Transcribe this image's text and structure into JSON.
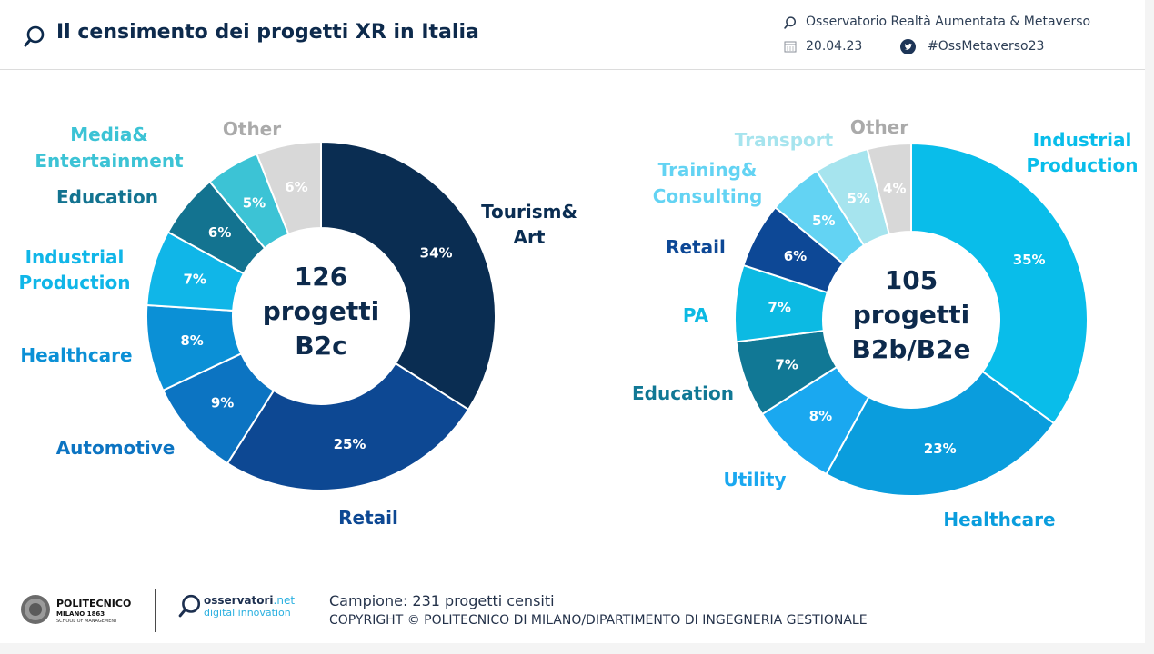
{
  "header": {
    "title": "Il censimento dei progetti XR in Italia",
    "observatory": "Osservatorio Realtà Aumentata & Metaverso",
    "date": "20.04.23",
    "hashtag": "#OssMetaverso23"
  },
  "footer": {
    "sample": "Campione: 231 progetti censiti",
    "copyright": "COPYRIGHT © POLITECNICO DI MILANO/DIPARTIMENTO DI INGEGNERIA GESTIONALE",
    "logo_polimi": {
      "name": "POLITECNICO",
      "sub": "MILANO 1863",
      "sub2": "SCHOOL OF MANAGEMENT"
    },
    "logo_osservatori": {
      "name": "osservatori",
      "net": ".net",
      "sub": "digital innovation"
    }
  },
  "colors": {
    "title": "#0d2a4c",
    "twitter": "#1d3557",
    "grey": "#aaaaaa"
  },
  "chart_data": [
    {
      "type": "pie",
      "donut": true,
      "center_text": [
        "126",
        "progetti",
        "B2c"
      ],
      "slices": [
        {
          "label": "Tourism& Art",
          "value": 34,
          "display": "34%",
          "color": "#0a2d52",
          "label_color": "#0a2d52"
        },
        {
          "label": "Retail",
          "value": 25,
          "display": "25%",
          "color": "#0d4893",
          "label_color": "#0d4893"
        },
        {
          "label": "Automotive",
          "value": 9,
          "display": "9%",
          "color": "#0c74c2",
          "label_color": "#0c74c2"
        },
        {
          "label": "Healthcare",
          "value": 8,
          "display": "8%",
          "color": "#0b90d6",
          "label_color": "#0b90d6"
        },
        {
          "label": "Industrial Production",
          "value": 7,
          "display": "7%",
          "color": "#10b6e8",
          "label_color": "#10b6e8"
        },
        {
          "label": "Education",
          "value": 6,
          "display": "6%",
          "color": "#137390",
          "label_color": "#137390"
        },
        {
          "label": "Media& Entertainment",
          "value": 5,
          "display": "5%",
          "color": "#3cc3d5",
          "label_color": "#3cc3d5"
        },
        {
          "label": "Other",
          "value": 6,
          "display": "6%",
          "color": "#d8d8d8",
          "label_color": "#aaaaaa"
        }
      ]
    },
    {
      "type": "pie",
      "donut": true,
      "center_text": [
        "105",
        "progetti",
        "B2b/B2e"
      ],
      "slices": [
        {
          "label": "Industrial Production",
          "value": 35,
          "display": "35%",
          "color": "#09bdea",
          "label_color": "#09bdea"
        },
        {
          "label": "Healthcare",
          "value": 23,
          "display": "23%",
          "color": "#0a9ddd",
          "label_color": "#0a9ddd"
        },
        {
          "label": "Utility",
          "value": 8,
          "display": "8%",
          "color": "#1aa8f0",
          "label_color": "#1aa8f0"
        },
        {
          "label": "Education",
          "value": 7,
          "display": "7%",
          "color": "#117895",
          "label_color": "#117895"
        },
        {
          "label": "PA",
          "value": 7,
          "display": "7%",
          "color": "#0cbae3",
          "label_color": "#0cbae3"
        },
        {
          "label": "Retail",
          "value": 6,
          "display": "6%",
          "color": "#0d4896",
          "label_color": "#0d4896"
        },
        {
          "label": "Training& Consulting",
          "value": 5,
          "display": "5%",
          "color": "#63d3f3",
          "label_color": "#63d3f3"
        },
        {
          "label": "Transport",
          "value": 5,
          "display": "5%",
          "color": "#a6e4ee",
          "label_color": "#a6e4ee"
        },
        {
          "label": "Other",
          "value": 4,
          "display": "4%",
          "color": "#d8d8d8",
          "label_color": "#aaaaaa"
        }
      ]
    }
  ]
}
